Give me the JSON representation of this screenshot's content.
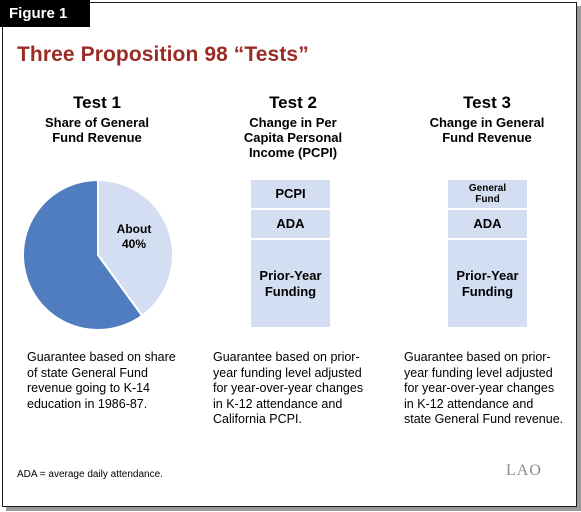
{
  "figure_label": "Figure 1",
  "title": "Three Proposition 98 “Tests”",
  "tests": [
    {
      "heading": "Test 1",
      "subtitle_lines": [
        "Share of General",
        "Fund Revenue"
      ],
      "description_lines": [
        "Guarantee based on share",
        "of state General Fund",
        "revenue going to K-14",
        "education in 1986-87."
      ]
    },
    {
      "heading": "Test 2",
      "subtitle_lines": [
        "Change in Per",
        "Capita Personal",
        "Income (PCPI)"
      ],
      "stack": [
        {
          "label_lines": [
            "PCPI"
          ]
        },
        {
          "label_lines": [
            "ADA"
          ]
        },
        {
          "label_lines": [
            "Prior-Year",
            "Funding"
          ]
        }
      ],
      "description_lines": [
        "Guarantee based on prior-",
        "year funding level adjusted",
        "for year-over-year changes",
        "in K-12 attendance and",
        "California PCPI."
      ]
    },
    {
      "heading": "Test 3",
      "subtitle_lines": [
        "Change in General",
        "Fund Revenue"
      ],
      "stack": [
        {
          "label_lines": [
            "General",
            "Fund"
          ]
        },
        {
          "label_lines": [
            "ADA"
          ]
        },
        {
          "label_lines": [
            "Prior-Year",
            "Funding"
          ]
        }
      ],
      "description_lines": [
        "Guarantee based on prior-",
        "year funding level adjusted",
        "for year-over-year changes",
        "in K-12 attendance and",
        "state General Fund revenue."
      ]
    }
  ],
  "chart_data": {
    "type": "pie",
    "slices": [
      {
        "label_lines": [
          "About",
          "40%"
        ],
        "value": 40,
        "color": "#d3def2"
      },
      {
        "label_lines": [],
        "value": 60,
        "color": "#4f7dbf"
      }
    ]
  },
  "colors": {
    "title": "#9b2b25",
    "stack_fill": "#d3def2",
    "pie_dark": "#4f7dbf",
    "pie_light": "#d3def2"
  },
  "footnote": "ADA = average daily attendance.",
  "logo": "LAO"
}
